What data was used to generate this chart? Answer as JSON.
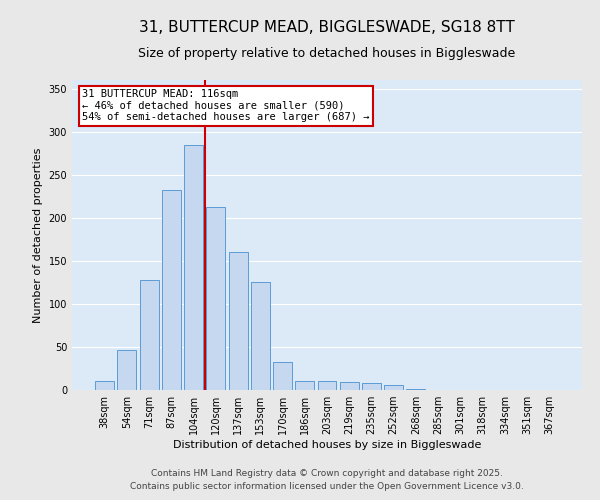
{
  "title_line1": "31, BUTTERCUP MEAD, BIGGLESWADE, SG18 8TT",
  "title_line2": "Size of property relative to detached houses in Biggleswade",
  "xlabel": "Distribution of detached houses by size in Biggleswade",
  "ylabel": "Number of detached properties",
  "categories": [
    "38sqm",
    "54sqm",
    "71sqm",
    "87sqm",
    "104sqm",
    "120sqm",
    "137sqm",
    "153sqm",
    "170sqm",
    "186sqm",
    "203sqm",
    "219sqm",
    "235sqm",
    "252sqm",
    "268sqm",
    "285sqm",
    "301sqm",
    "318sqm",
    "334sqm",
    "351sqm",
    "367sqm"
  ],
  "values": [
    11,
    47,
    128,
    232,
    285,
    212,
    160,
    125,
    32,
    11,
    11,
    9,
    8,
    6,
    1,
    0,
    0,
    0,
    0,
    0,
    0
  ],
  "bar_color": "#c5d8f0",
  "bar_edge_color": "#5b9bd5",
  "bg_color": "#dce9f7",
  "grid_color": "#ffffff",
  "annotation_text": "31 BUTTERCUP MEAD: 116sqm\n← 46% of detached houses are smaller (590)\n54% of semi-detached houses are larger (687) →",
  "vline_x": 4.5,
  "vline_color": "#cc0000",
  "ylim": [
    0,
    360
  ],
  "yticks": [
    0,
    50,
    100,
    150,
    200,
    250,
    300,
    350
  ],
  "footnote_line1": "Contains HM Land Registry data © Crown copyright and database right 2025.",
  "footnote_line2": "Contains public sector information licensed under the Open Government Licence v3.0.",
  "title_fontsize": 11,
  "subtitle_fontsize": 9,
  "axis_label_fontsize": 8,
  "tick_fontsize": 7,
  "annotation_fontsize": 7.5,
  "footnote_fontsize": 6.5,
  "fig_bg": "#e8e8e8"
}
